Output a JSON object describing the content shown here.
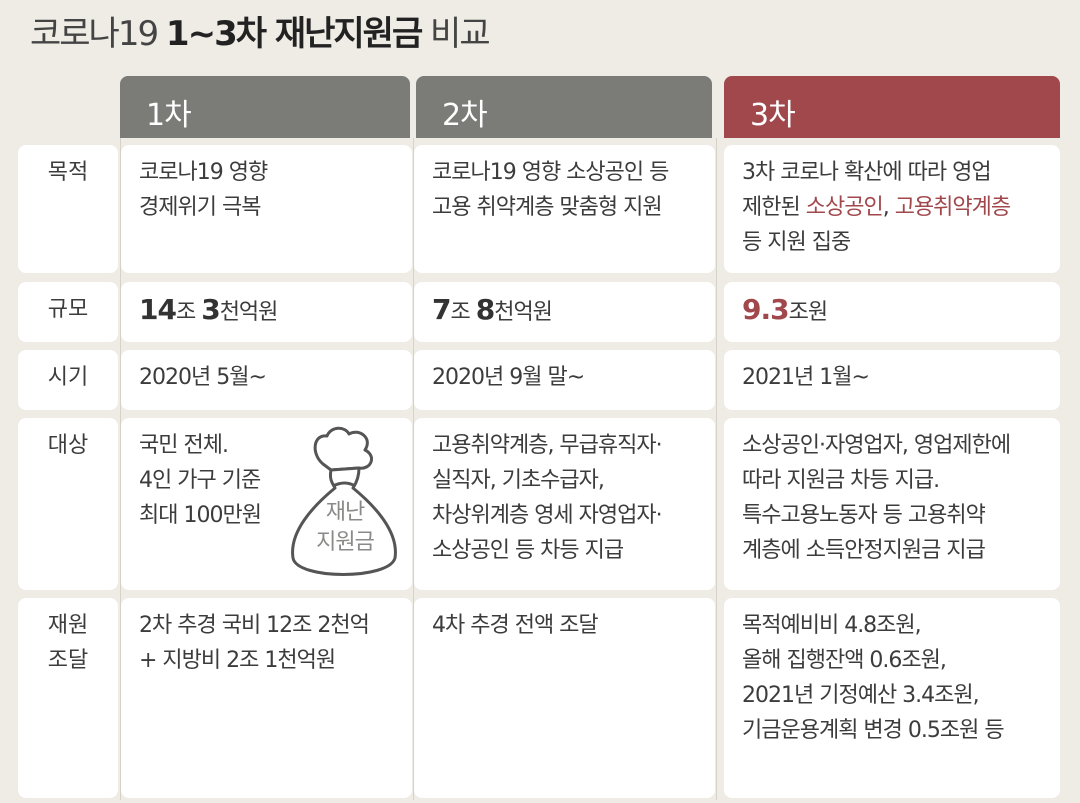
{
  "title": {
    "normal_prefix": "코로나19 ",
    "bold": "1~3차 재난지원금",
    "normal_suffix": " 비교"
  },
  "columns": [
    {
      "label": "1차"
    },
    {
      "label": "2차"
    },
    {
      "label": "3차"
    }
  ],
  "rows": {
    "purpose": {
      "label": "목적",
      "values": [
        "코로나19 영향\n경제위기 극복",
        "코로나19 영향 소상공인 등\n고용 취약계층 맞춤형 지원",
        {
          "pre": "3차 코로나 확산에 따라 영업\n제한된 ",
          "hl1": "소상공인",
          "mid": ", ",
          "hl2": "고용취약계층",
          "post": "\n등 지원 집중"
        }
      ]
    },
    "scale": {
      "label": "규모",
      "values": [
        {
          "n1": "14",
          "u1": "조 ",
          "n2": "3",
          "u2": "천억원"
        },
        {
          "n1": "7",
          "u1": "조 ",
          "n2": "8",
          "u2": "천억원"
        },
        {
          "n1": "9.3",
          "u1": "조원"
        }
      ]
    },
    "timing": {
      "label": "시기",
      "values": [
        "2020년 5월~",
        "2020년 9월 말~",
        "2021년 1월~"
      ]
    },
    "target": {
      "label": "대상",
      "values": [
        "국민 전체.\n4인 가구 기준\n최대 100만원",
        "고용취약계층, 무급휴직자·\n실직자, 기초수급자,\n차상위계층 영세 자영업자·\n소상공인 등 차등 지급",
        "소상공인·자영업자, 영업제한에\n따라 지원금 차등 지급.\n특수고용노동자 등 고용취약\n계층에 소득안정지원금 지급"
      ],
      "bag_text": "재난\n지원금"
    },
    "funding": {
      "label": "재원\n조달",
      "values": [
        "2차 추경 국비 12조 2천억\n+ 지방비 2조 1천억원",
        "4차 추경 전액 조달",
        "목적예비비 4.8조원,\n올해 집행잔액 0.6조원,\n2021년 기정예산 3.4조원,\n기금운용계획 변경 0.5조원 등"
      ]
    }
  },
  "colors": {
    "header_gray": "#7b7b78",
    "header_red": "#a0484c",
    "highlight": "#a0484c",
    "background": "#efece5"
  }
}
